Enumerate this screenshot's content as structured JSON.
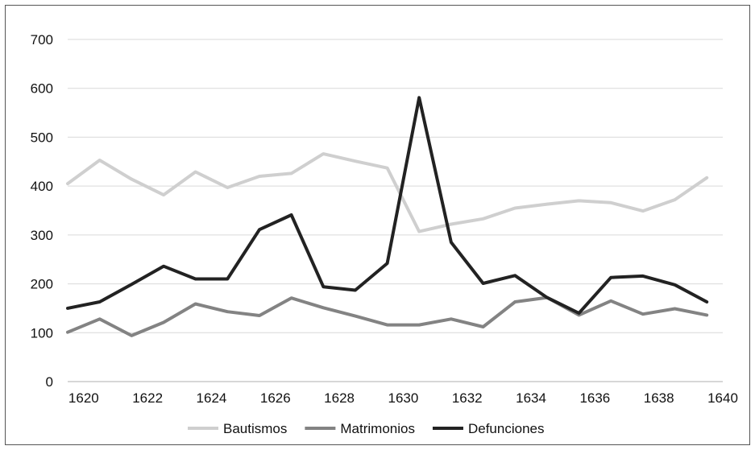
{
  "chart_data": {
    "type": "line",
    "title": "",
    "xlabel": "",
    "ylabel": "",
    "ylim": [
      0,
      700
    ],
    "yticks": [
      0,
      100,
      200,
      300,
      400,
      500,
      600,
      700
    ],
    "xlim": [
      1619.5,
      1640
    ],
    "xticks": [
      1620,
      1622,
      1624,
      1626,
      1628,
      1630,
      1632,
      1634,
      1636,
      1638,
      1640
    ],
    "grid": "horizontal",
    "legend_position": "bottom",
    "x": [
      1619.5,
      1620.5,
      1621.5,
      1622.5,
      1623.5,
      1624.5,
      1625.5,
      1626.5,
      1627.5,
      1628.5,
      1629.5,
      1630.5,
      1631.5,
      1632.5,
      1633.5,
      1634.5,
      1635.5,
      1636.5,
      1637.5,
      1638.5,
      1639.5
    ],
    "series": [
      {
        "name": "Bautismos",
        "color": "#cfcfcf",
        "values": [
          405,
          453,
          414,
          382,
          429,
          397,
          420,
          426,
          466,
          451,
          437,
          307,
          322,
          333,
          355,
          363,
          370,
          366,
          349,
          372,
          417
        ]
      },
      {
        "name": "Matrimonios",
        "color": "#838383",
        "values": [
          101,
          128,
          94,
          121,
          159,
          143,
          135,
          171,
          151,
          134,
          116,
          116,
          128,
          112,
          163,
          172,
          136,
          165,
          138,
          149,
          136
        ]
      },
      {
        "name": "Defunciones",
        "color": "#222222",
        "values": [
          150,
          163,
          199,
          236,
          210,
          210,
          311,
          341,
          194,
          187,
          242,
          581,
          285,
          201,
          217,
          172,
          140,
          213,
          216,
          198,
          163
        ]
      }
    ]
  }
}
